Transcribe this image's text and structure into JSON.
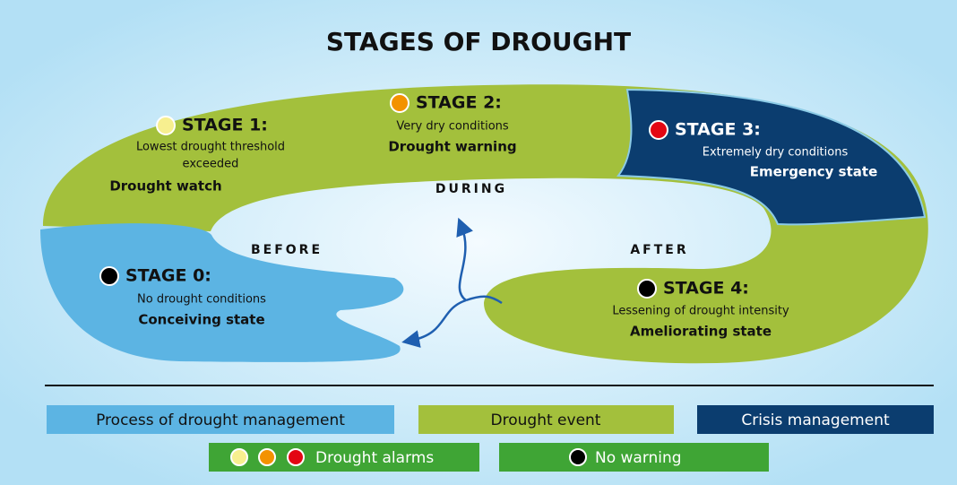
{
  "title": "STAGES OF DROUGHT",
  "stages": [
    {
      "label": "STAGE 0:",
      "description": [
        "No drought conditions"
      ],
      "state": "Conceiving state"
    },
    {
      "label": "STAGE 1:",
      "description": [
        "Lowest drought threshold",
        "exceeded"
      ],
      "state": "Drought watch"
    },
    {
      "label": "STAGE 2:",
      "description": [
        "Very dry conditions"
      ],
      "state": "Drought warning"
    },
    {
      "label": "STAGE 3:",
      "description": [
        "Extremely dry conditions"
      ],
      "state": "Emergency state"
    },
    {
      "label": "STAGE 4:",
      "description": [
        "Lessening of drought intensity"
      ],
      "state": "Ameliorating state"
    }
  ],
  "phases": [
    "BEFORE",
    "DURING",
    "AFTER"
  ],
  "legend": [
    "Process of drought management",
    "Drought event",
    "Crisis management",
    "Drought alarms",
    "No warning"
  ]
}
